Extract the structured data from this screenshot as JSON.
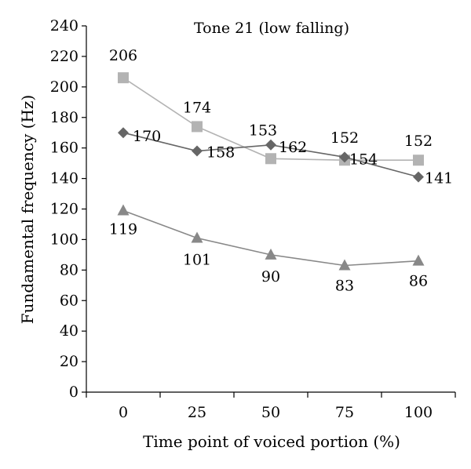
{
  "chart_data": {
    "type": "line",
    "title": "Tone 21 (low falling)",
    "xlabel": "Time point of voiced portion (%)",
    "ylabel": "Fundamental frequency (Hz)",
    "categories": [
      "0",
      "25",
      "50",
      "75",
      "100"
    ],
    "ylim": [
      0,
      240
    ],
    "yticks": [
      "0",
      "20",
      "40",
      "60",
      "80",
      "100",
      "120",
      "140",
      "160",
      "180",
      "200",
      "220",
      "240"
    ],
    "grid": false,
    "legend": "none",
    "series": [
      {
        "marker": "square",
        "color": "#b3b3b3",
        "values": [
          206,
          174,
          153,
          152,
          152
        ],
        "labels": [
          "206",
          "174",
          "153",
          "152",
          "152"
        ]
      },
      {
        "marker": "diamond",
        "color": "#666666",
        "values": [
          170,
          158,
          162,
          154,
          141
        ],
        "labels": [
          "170",
          "158",
          "162",
          "154",
          "141"
        ]
      },
      {
        "marker": "triangle",
        "color": "#888888",
        "values": [
          119,
          101,
          90,
          83,
          86
        ],
        "labels": [
          "119",
          "101",
          "90",
          "83",
          "86"
        ]
      }
    ]
  }
}
